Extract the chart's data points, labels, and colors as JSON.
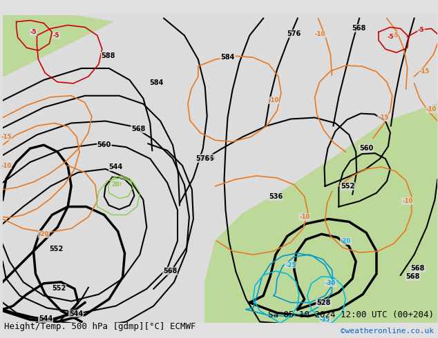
{
  "title_left": "Height/Temp. 500 hPa [gdmp][°C] ECMWF",
  "title_right": "Sa 05-10-2024 12:00 UTC (00+204)",
  "credit": "©weatheronline.co.uk",
  "bg_color": "#d0d0d0",
  "land_color_green": "#b8d896",
  "label_fontsize": 7,
  "title_fontsize": 9,
  "credit_fontsize": 8
}
